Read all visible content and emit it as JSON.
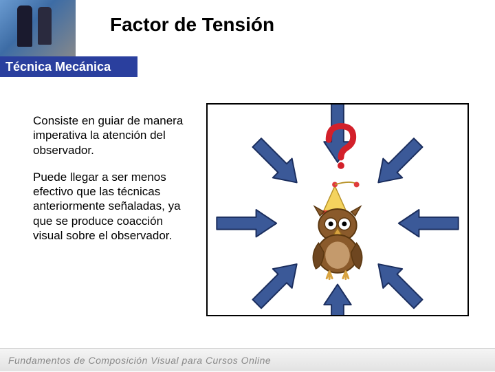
{
  "title": "Factor de Tensión",
  "subtitle": "Técnica Mecánica",
  "paragraphs": {
    "p1": "Consiste en guiar de manera imperativa la atención del observador.",
    "p2": "Puede llegar a ser menos efectivo que las técnicas anteriormente señaladas, ya que se produce coacción visual sobre el observador."
  },
  "footer": "Fundamentos de Composición Visual para Cursos Online",
  "diagram": {
    "arrow_fill": "#3b5998",
    "arrow_stroke": "#1b2e5e",
    "border_color": "#000000",
    "owl_body": "#8a5a2b",
    "owl_belly": "#c49a6c",
    "owl_beak": "#d9a441",
    "hat_main": "#f4d35e",
    "hat_band": "#e03c3c",
    "question_color": "#d3202a",
    "arrows": [
      {
        "angle": 0
      },
      {
        "angle": 45
      },
      {
        "angle": 90
      },
      {
        "angle": 135
      },
      {
        "angle": 180
      },
      {
        "angle": 225
      },
      {
        "angle": 270
      },
      {
        "angle": 315
      }
    ]
  }
}
